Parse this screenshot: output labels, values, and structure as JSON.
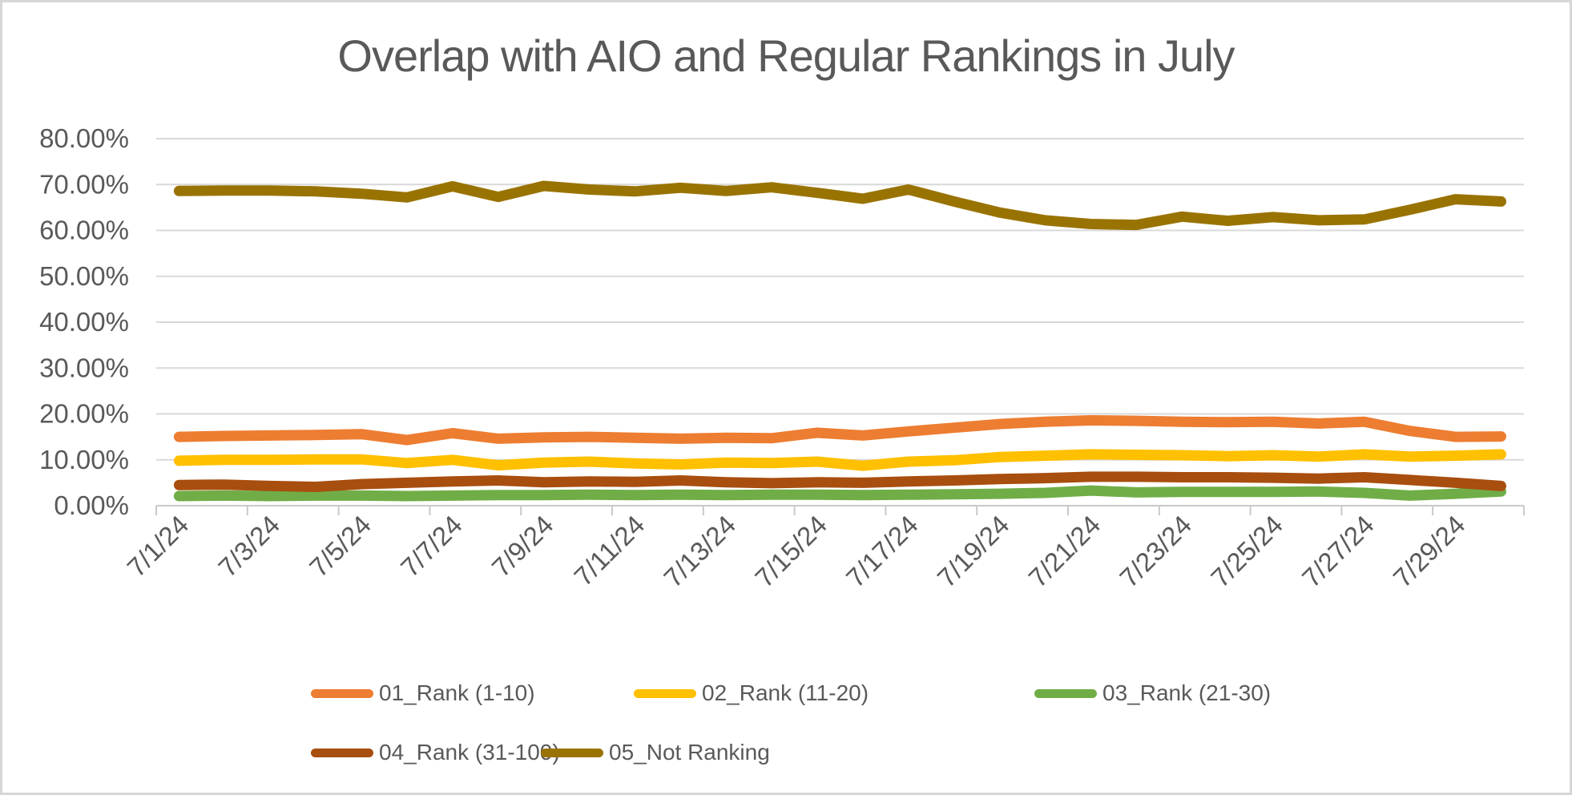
{
  "frame": {
    "background": "#FFFFFF",
    "border_color": "#D6D6D6"
  },
  "chart_data": {
    "type": "line",
    "title": "Overlap with AIO and Regular Rankings in July",
    "title_color": "#595959",
    "axis_text_color": "#595959",
    "gridline_color": "#D9D9D9",
    "axis_line_color": "#C9C9C9",
    "grid": "horizontal",
    "legend_position": "bottom",
    "ylim": [
      0,
      80
    ],
    "y_tick_step": 10,
    "y_tick_labels": [
      "0.00%",
      "10.00%",
      "20.00%",
      "30.00%",
      "40.00%",
      "50.00%",
      "60.00%",
      "70.00%",
      "80.00%"
    ],
    "x_label_interval": 2,
    "x_tick_labels": [
      "7/1/24",
      "7/3/24",
      "7/5/24",
      "7/7/24",
      "7/9/24",
      "7/11/24",
      "7/13/24",
      "7/15/24",
      "7/17/24",
      "7/19/24",
      "7/21/24",
      "7/23/24",
      "7/25/24",
      "7/27/24",
      "7/29/24"
    ],
    "x": [
      "7/1/24",
      "7/2/24",
      "7/3/24",
      "7/4/24",
      "7/5/24",
      "7/6/24",
      "7/7/24",
      "7/8/24",
      "7/9/24",
      "7/10/24",
      "7/11/24",
      "7/12/24",
      "7/13/24",
      "7/14/24",
      "7/15/24",
      "7/16/24",
      "7/17/24",
      "7/18/24",
      "7/19/24",
      "7/20/24",
      "7/21/24",
      "7/22/24",
      "7/23/24",
      "7/24/24",
      "7/25/24",
      "7/26/24",
      "7/27/24",
      "7/28/24",
      "7/29/24",
      "7/30/24"
    ],
    "series": [
      {
        "name": "01_Rank (1-10)",
        "color": "#ED7D31",
        "values": [
          15.0,
          15.2,
          15.3,
          15.4,
          15.6,
          14.3,
          15.8,
          14.6,
          14.9,
          15.0,
          14.8,
          14.6,
          14.8,
          14.7,
          15.9,
          15.3,
          16.2,
          17.0,
          17.8,
          18.3,
          18.6,
          18.5,
          18.3,
          18.2,
          18.3,
          17.9,
          18.3,
          16.3,
          15.0,
          15.1
        ]
      },
      {
        "name": "02_Rank (11-20)",
        "color": "#FFC000",
        "values": [
          9.8,
          10.0,
          10.0,
          10.1,
          10.1,
          9.3,
          10.0,
          8.8,
          9.4,
          9.6,
          9.2,
          9.0,
          9.4,
          9.3,
          9.6,
          8.7,
          9.6,
          9.9,
          10.6,
          10.9,
          11.2,
          11.1,
          11.0,
          10.8,
          11.0,
          10.7,
          11.2,
          10.7,
          10.9,
          11.2
        ]
      },
      {
        "name": "03_Rank (21-30)",
        "color": "#70AD47",
        "values": [
          2.1,
          2.2,
          2.1,
          2.2,
          2.2,
          2.1,
          2.2,
          2.3,
          2.3,
          2.4,
          2.3,
          2.4,
          2.3,
          2.4,
          2.4,
          2.3,
          2.4,
          2.5,
          2.6,
          2.8,
          3.3,
          2.9,
          3.0,
          3.0,
          3.0,
          3.1,
          2.8,
          2.2,
          2.6,
          3.1
        ]
      },
      {
        "name": "04_Rank (31-100)",
        "color": "#A84E0F",
        "values": [
          4.5,
          4.6,
          4.3,
          4.1,
          4.7,
          5.0,
          5.3,
          5.5,
          5.1,
          5.3,
          5.2,
          5.5,
          5.1,
          4.9,
          5.1,
          5.0,
          5.3,
          5.5,
          5.8,
          6.0,
          6.3,
          6.3,
          6.2,
          6.2,
          6.1,
          5.9,
          6.2,
          5.6,
          5.0,
          4.3
        ]
      },
      {
        "name": "05_Not Ranking",
        "color": "#997302",
        "values": [
          68.6,
          68.7,
          68.7,
          68.5,
          68.0,
          67.2,
          69.6,
          67.3,
          69.7,
          68.9,
          68.5,
          69.3,
          68.6,
          69.4,
          68.2,
          66.9,
          68.9,
          66.3,
          63.9,
          62.2,
          61.4,
          61.2,
          63.0,
          62.1,
          62.9,
          62.2,
          62.4,
          64.5,
          66.8,
          66.3
        ]
      }
    ],
    "legend_rows": [
      [
        0,
        1,
        2
      ],
      [
        3,
        4
      ]
    ]
  }
}
